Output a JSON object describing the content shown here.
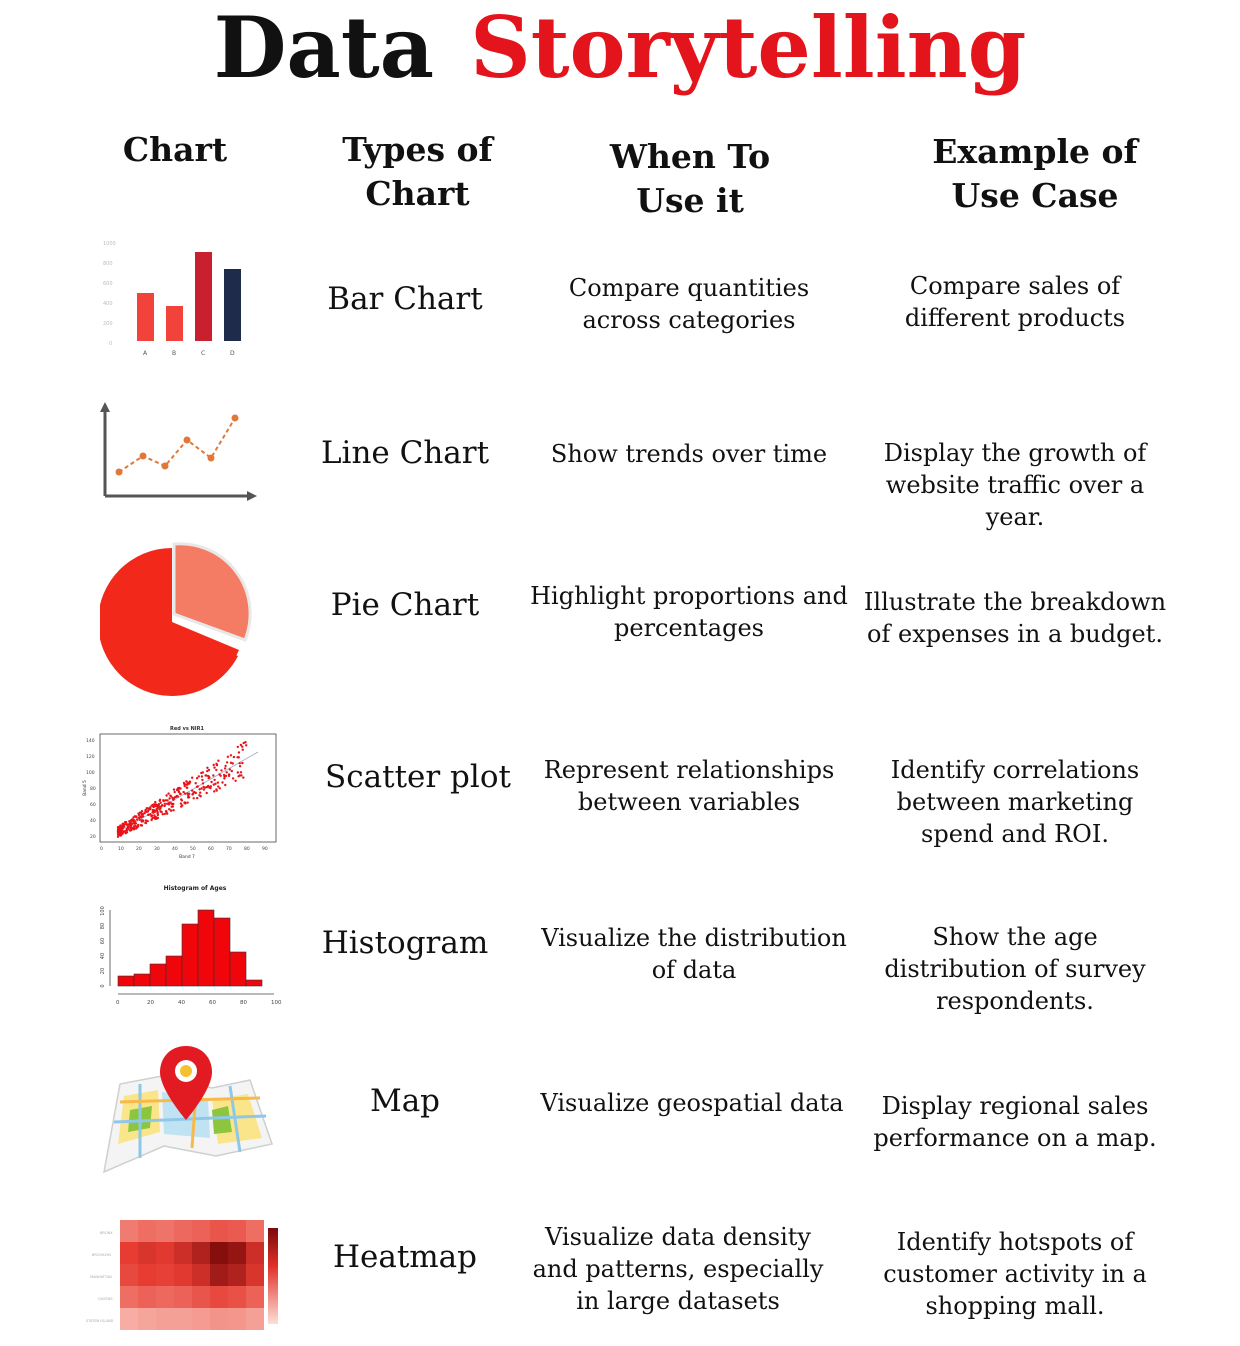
{
  "title": {
    "word1": "Data",
    "word2": "Storytelling"
  },
  "headers": {
    "chart": "Chart",
    "types": "Types of Chart",
    "when": "When To Use it",
    "example": "Example of Use Case"
  },
  "rows": [
    {
      "name": "Bar Chart",
      "when": "Compare quantities across categories",
      "example": "Compare sales of different products",
      "icon": "bar-chart-icon"
    },
    {
      "name": "Line Chart",
      "when": "Show trends over time",
      "example": "Display the growth of website traffic over a year.",
      "icon": "line-chart-icon"
    },
    {
      "name": "Pie Chart",
      "when": "Highlight proportions and percentages",
      "example": "Illustrate the breakdown of expenses in a budget.",
      "icon": "pie-chart-icon"
    },
    {
      "name": "Scatter plot",
      "when": "Represent relationships between variables",
      "example": "Identify correlations between marketing spend and ROI.",
      "icon": "scatter-plot-icon"
    },
    {
      "name": "Histogram",
      "when": "Visualize the distribution of data",
      "example": "Show the age distribution of survey respondents.",
      "icon": "histogram-icon"
    },
    {
      "name": "Map",
      "when": "Visualize geospatial data",
      "example": "Display regional sales performance on a map.",
      "icon": "map-pin-icon"
    },
    {
      "name": "Heatmap",
      "when": "Visualize data density and patterns, especially in large datasets",
      "example": "Identify hotspots of customer activity in a shopping mall.",
      "icon": "heatmap-icon"
    }
  ],
  "thumbnails": {
    "bar": {
      "categories": [
        "A",
        "B",
        "C",
        "D"
      ],
      "values": [
        480,
        350,
        890,
        720
      ],
      "colors": [
        "#f2433a",
        "#f2433a",
        "#c8202e",
        "#1e2b4a"
      ]
    },
    "scatter_title": "Red vs NIR1",
    "scatter_xlabel": "Band 7",
    "scatter_ylabel": "Band 5",
    "histogram_title": "Histogram of Ages",
    "histogram_x_ticks": [
      "0",
      "20",
      "40",
      "60",
      "80",
      "100"
    ],
    "histogram_y_ticks": [
      "0",
      "20",
      "40",
      "60",
      "80",
      "100"
    ]
  },
  "colors": {
    "accent": "#e3141c"
  }
}
